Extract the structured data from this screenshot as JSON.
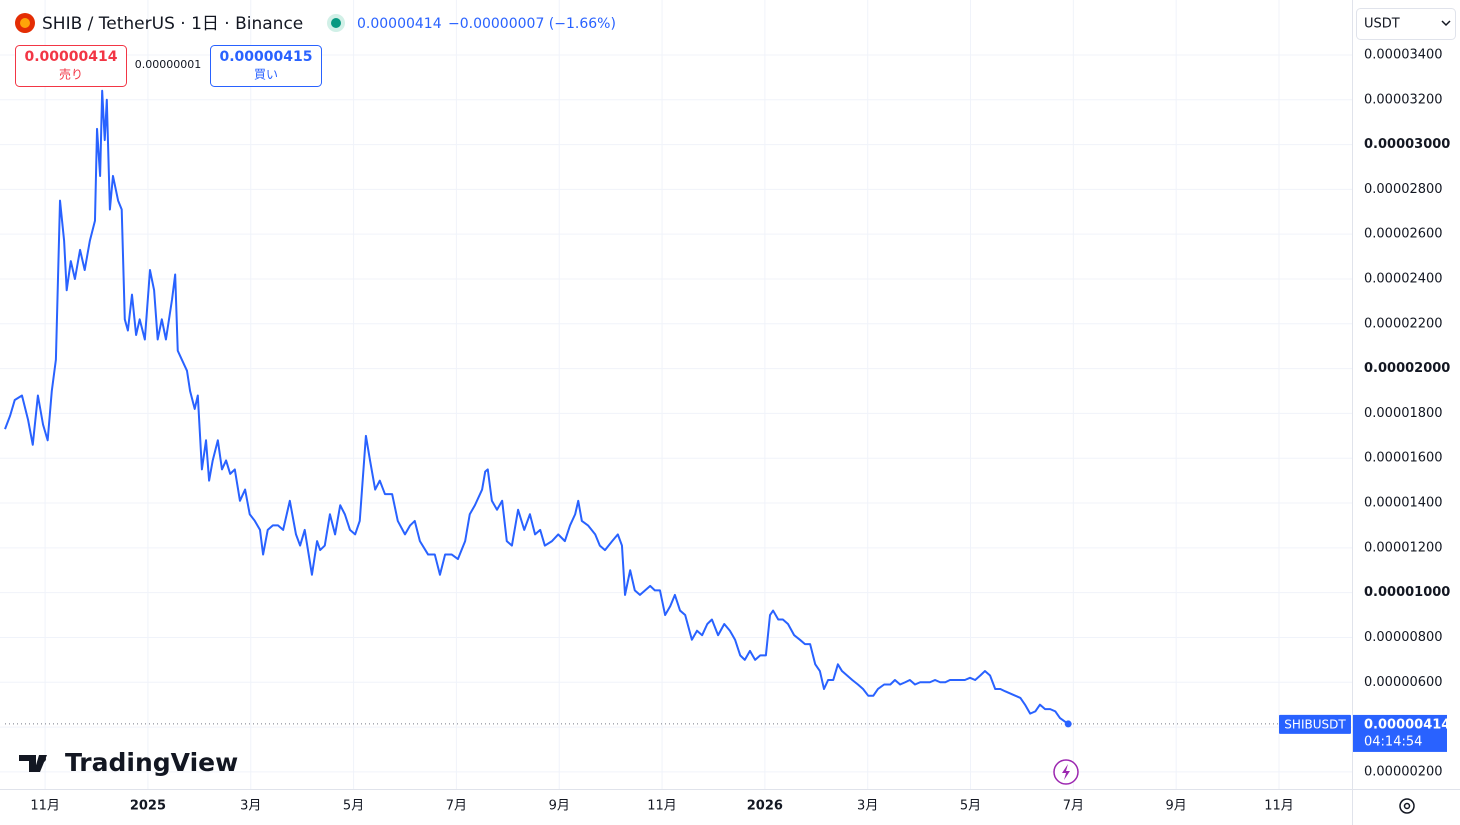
{
  "header": {
    "symbol_title": "SHIB / TetherUS · 1日 · Binance",
    "last_price": "0.00000414",
    "change": "−0.00000007 (−1.66%)",
    "sell_price": "0.00000414",
    "sell_label": "売り",
    "spread": "0.00000001",
    "buy_price": "0.00000415",
    "buy_label": "買い",
    "currency": "USDT",
    "countdown": "04:14:54",
    "brand": "TradingView"
  },
  "chart_data": {
    "type": "line",
    "x": [
      -2.78,
      -2.68,
      -2.59,
      -2.45,
      -2.33,
      -2.24,
      -2.14,
      -2.04,
      -1.95,
      -1.87,
      -1.79,
      -1.71,
      -1.63,
      -1.58,
      -1.5,
      -1.42,
      -1.32,
      -1.23,
      -1.13,
      -1.03,
      -0.99,
      -0.93,
      -0.89,
      -0.84,
      -0.8,
      -0.74,
      -0.68,
      -0.58,
      -0.51,
      -0.45,
      -0.39,
      -0.31,
      -0.23,
      -0.16,
      -0.06,
      0.04,
      0.12,
      0.19,
      0.27,
      0.35,
      0.47,
      0.53,
      0.58,
      0.66,
      0.76,
      0.82,
      0.91,
      0.97,
      1.05,
      1.13,
      1.19,
      1.26,
      1.36,
      1.44,
      1.52,
      1.6,
      1.69,
      1.79,
      1.89,
      1.98,
      2.08,
      2.18,
      2.24,
      2.33,
      2.43,
      2.53,
      2.63,
      2.76,
      2.88,
      2.96,
      3.05,
      3.19,
      3.29,
      3.35,
      3.44,
      3.54,
      3.64,
      3.74,
      3.83,
      3.93,
      4.03,
      4.12,
      4.24,
      4.32,
      4.42,
      4.51,
      4.61,
      4.75,
      4.86,
      5.0,
      5.1,
      5.19,
      5.29,
      5.45,
      5.58,
      5.68,
      5.78,
      5.91,
      6.03,
      6.17,
      6.26,
      6.36,
      6.5,
      6.56,
      6.61,
      6.69,
      6.79,
      6.89,
      6.98,
      7.08,
      7.2,
      7.32,
      7.43,
      7.53,
      7.63,
      7.72,
      7.86,
      7.98,
      8.11,
      8.21,
      8.31,
      8.37,
      8.44,
      8.56,
      8.7,
      8.79,
      8.89,
      9.03,
      9.14,
      9.22,
      9.28,
      9.38,
      9.47,
      9.57,
      9.67,
      9.77,
      9.86,
      9.96,
      10.06,
      10.16,
      10.25,
      10.35,
      10.45,
      10.58,
      10.68,
      10.78,
      10.88,
      10.97,
      11.09,
      11.21,
      11.32,
      11.42,
      11.52,
      11.61,
      11.71,
      11.81,
      11.91,
      12.02,
      12.1,
      12.16,
      12.26,
      12.35,
      12.45,
      12.57,
      12.68,
      12.78,
      12.88,
      12.98,
      13.07,
      13.15,
      13.23,
      13.33,
      13.42,
      13.5,
      13.6,
      13.7,
      13.81,
      13.91,
      14.01,
      14.11,
      14.2,
      14.32,
      14.44,
      14.53,
      14.63,
      14.73,
      14.82,
      14.92,
      15.02,
      15.12,
      15.21,
      15.31,
      15.41,
      15.51,
      15.6,
      15.7,
      15.8,
      15.89,
      15.99,
      16.09,
      16.19,
      16.28,
      16.38,
      16.48,
      16.58,
      16.67,
      16.77,
      16.87,
      16.97,
      17.06,
      17.16,
      17.26,
      17.35,
      17.45,
      17.55,
      17.65,
      17.74,
      17.9
    ],
    "series": [
      {
        "name": "SHIBUSDT",
        "color": "#2962ff",
        "values": [
          1.73e-05,
          1.79e-05,
          1.86e-05,
          1.88e-05,
          1.77e-05,
          1.66e-05,
          1.88e-05,
          1.75e-05,
          1.68e-05,
          1.9e-05,
          2.04e-05,
          2.75e-05,
          2.57e-05,
          2.35e-05,
          2.48e-05,
          2.4e-05,
          2.53e-05,
          2.44e-05,
          2.57e-05,
          2.66e-05,
          3.07e-05,
          2.86e-05,
          3.24e-05,
          3.02e-05,
          3.2e-05,
          2.71e-05,
          2.86e-05,
          2.75e-05,
          2.71e-05,
          2.22e-05,
          2.17e-05,
          2.33e-05,
          2.15e-05,
          2.22e-05,
          2.13e-05,
          2.44e-05,
          2.35e-05,
          2.13e-05,
          2.22e-05,
          2.13e-05,
          2.31e-05,
          2.42e-05,
          2.08e-05,
          2.04e-05,
          1.99e-05,
          1.9e-05,
          1.82e-05,
          1.88e-05,
          1.55e-05,
          1.68e-05,
          1.5e-05,
          1.59e-05,
          1.68e-05,
          1.55e-05,
          1.59e-05,
          1.53e-05,
          1.55e-05,
          1.41e-05,
          1.46e-05,
          1.35e-05,
          1.32e-05,
          1.28e-05,
          1.17e-05,
          1.28e-05,
          1.3e-05,
          1.3e-05,
          1.28e-05,
          1.41e-05,
          1.26e-05,
          1.21e-05,
          1.28e-05,
          1.08e-05,
          1.23e-05,
          1.19e-05,
          1.21e-05,
          1.35e-05,
          1.26e-05,
          1.39e-05,
          1.35e-05,
          1.28e-05,
          1.26e-05,
          1.32e-05,
          1.7e-05,
          1.59e-05,
          1.46e-05,
          1.5e-05,
          1.44e-05,
          1.44e-05,
          1.32e-05,
          1.26e-05,
          1.3e-05,
          1.32e-05,
          1.23e-05,
          1.17e-05,
          1.17e-05,
          1.08e-05,
          1.17e-05,
          1.17e-05,
          1.15e-05,
          1.23e-05,
          1.35e-05,
          1.39e-05,
          1.46e-05,
          1.54e-05,
          1.55e-05,
          1.41e-05,
          1.37e-05,
          1.41e-05,
          1.23e-05,
          1.21e-05,
          1.37e-05,
          1.28e-05,
          1.35e-05,
          1.26e-05,
          1.28e-05,
          1.21e-05,
          1.23e-05,
          1.26e-05,
          1.23e-05,
          1.3e-05,
          1.35e-05,
          1.41e-05,
          1.32e-05,
          1.3e-05,
          1.26e-05,
          1.21e-05,
          1.19e-05,
          1.23e-05,
          1.26e-05,
          1.21e-05,
          9.9e-06,
          1.1e-05,
          1.01e-05,
          9.9e-06,
          1.01e-05,
          1.03e-05,
          1.01e-05,
          1.01e-05,
          9e-06,
          9.4e-06,
          9.9e-06,
          9.2e-06,
          9e-06,
          7.9e-06,
          8.3e-06,
          8.1e-06,
          8.6e-06,
          8.8e-06,
          8.1e-06,
          8.6e-06,
          8.3e-06,
          7.9e-06,
          7.2e-06,
          7e-06,
          7.4e-06,
          7e-06,
          7.2e-06,
          7.2e-06,
          9e-06,
          9.2e-06,
          8.8e-06,
          8.8e-06,
          8.6e-06,
          8.1e-06,
          7.9e-06,
          7.7e-06,
          7.7e-06,
          6.8e-06,
          6.5e-06,
          5.7e-06,
          6.1e-06,
          6.1e-06,
          6.8e-06,
          6.5e-06,
          6.3e-06,
          6.1e-06,
          5.9e-06,
          5.7e-06,
          5.4e-06,
          5.4e-06,
          5.7e-06,
          5.9e-06,
          5.9e-06,
          6.1e-06,
          5.9e-06,
          6e-06,
          6.1e-06,
          5.9e-06,
          6e-06,
          6e-06,
          6e-06,
          6.1e-06,
          6e-06,
          6e-06,
          6.1e-06,
          6.1e-06,
          6.1e-06,
          6.1e-06,
          6.2e-06,
          6.1e-06,
          6.3e-06,
          6.5e-06,
          6.3e-06,
          5.7e-06,
          5.7e-06,
          5.6e-06,
          5.5e-06,
          5.4e-06,
          5.3e-06,
          5e-06,
          4.6e-06,
          4.7e-06,
          5e-06,
          4.8e-06,
          4.8e-06,
          4.7e-06,
          4.4e-06,
          4.14e-06
        ]
      }
    ],
    "xlim": [
      -2.78,
      23.42
    ],
    "xticks": [
      {
        "value": -2,
        "label": "11月"
      },
      {
        "value": 0,
        "label": "2025"
      },
      {
        "value": 2,
        "label": "3月"
      },
      {
        "value": 4,
        "label": "5月"
      },
      {
        "value": 6,
        "label": "7月"
      },
      {
        "value": 8,
        "label": "9月"
      },
      {
        "value": 10,
        "label": "11月"
      },
      {
        "value": 12,
        "label": "2026"
      },
      {
        "value": 14,
        "label": "3月"
      },
      {
        "value": 16,
        "label": "5月"
      },
      {
        "value": 18,
        "label": "7月"
      },
      {
        "value": 20,
        "label": "9月"
      },
      {
        "value": 22,
        "label": "11月"
      }
    ],
    "ylim": [
      1.28e-06,
      3.623e-05
    ],
    "yticks": [
      {
        "value": 2e-06,
        "label": "0.00000200"
      },
      {
        "value": 4e-06,
        "label": "0.00000400"
      },
      {
        "value": 6e-06,
        "label": "0.00000600"
      },
      {
        "value": 8e-06,
        "label": "0.00000800"
      },
      {
        "value": 1e-05,
        "label": "0.00001000"
      },
      {
        "value": 1.2e-05,
        "label": "0.00001200"
      },
      {
        "value": 1.4e-05,
        "label": "0.00001400"
      },
      {
        "value": 1.6e-05,
        "label": "0.00001600"
      },
      {
        "value": 1.8e-05,
        "label": "0.00001800"
      },
      {
        "value": 2e-05,
        "label": "0.00002000"
      },
      {
        "value": 2.2e-05,
        "label": "0.00002200"
      },
      {
        "value": 2.4e-05,
        "label": "0.00002400"
      },
      {
        "value": 2.6e-05,
        "label": "0.00002600"
      },
      {
        "value": 2.8e-05,
        "label": "0.00002800"
      },
      {
        "value": 3e-05,
        "label": "0.00003000"
      },
      {
        "value": 3.2e-05,
        "label": "0.00003200"
      },
      {
        "value": 3.4e-05,
        "label": "0.00003400"
      }
    ],
    "grid": true
  }
}
